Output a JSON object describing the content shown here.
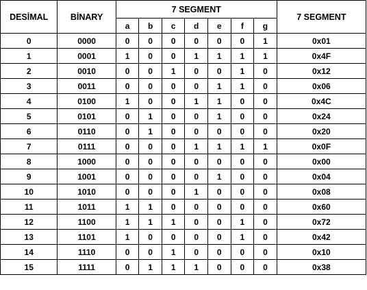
{
  "headers": {
    "decimal": "DESİMAL",
    "binary": "BİNARY",
    "segment_group": "7 SEGMENT",
    "segment_hex": "7 SEGMENT",
    "segments": [
      "a",
      "b",
      "c",
      "d",
      "e",
      "f",
      "g"
    ]
  },
  "rows": [
    {
      "dec": "0",
      "bin": "0000",
      "seg": [
        "0",
        "0",
        "0",
        "0",
        "0",
        "0",
        "1"
      ],
      "hex": "0x01"
    },
    {
      "dec": "1",
      "bin": "0001",
      "seg": [
        "1",
        "0",
        "0",
        "1",
        "1",
        "1",
        "1"
      ],
      "hex": "0x4F"
    },
    {
      "dec": "2",
      "bin": "0010",
      "seg": [
        "0",
        "0",
        "1",
        "0",
        "0",
        "1",
        "0"
      ],
      "hex": "0x12"
    },
    {
      "dec": "3",
      "bin": "0011",
      "seg": [
        "0",
        "0",
        "0",
        "0",
        "1",
        "1",
        "0"
      ],
      "hex": "0x06"
    },
    {
      "dec": "4",
      "bin": "0100",
      "seg": [
        "1",
        "0",
        "0",
        "1",
        "1",
        "0",
        "0"
      ],
      "hex": "0x4C"
    },
    {
      "dec": "5",
      "bin": "0101",
      "seg": [
        "0",
        "1",
        "0",
        "0",
        "1",
        "0",
        "0"
      ],
      "hex": "0x24"
    },
    {
      "dec": "6",
      "bin": "0110",
      "seg": [
        "0",
        "1",
        "0",
        "0",
        "0",
        "0",
        "0"
      ],
      "hex": "0x20"
    },
    {
      "dec": "7",
      "bin": "0111",
      "seg": [
        "0",
        "0",
        "0",
        "1",
        "1",
        "1",
        "1"
      ],
      "hex": "0x0F"
    },
    {
      "dec": "8",
      "bin": "1000",
      "seg": [
        "0",
        "0",
        "0",
        "0",
        "0",
        "0",
        "0"
      ],
      "hex": "0x00"
    },
    {
      "dec": "9",
      "bin": "1001",
      "seg": [
        "0",
        "0",
        "0",
        "0",
        "1",
        "0",
        "0"
      ],
      "hex": "0x04"
    },
    {
      "dec": "10",
      "bin": "1010",
      "seg": [
        "0",
        "0",
        "0",
        "1",
        "0",
        "0",
        "0"
      ],
      "hex": "0x08"
    },
    {
      "dec": "11",
      "bin": "1011",
      "seg": [
        "1",
        "1",
        "0",
        "0",
        "0",
        "0",
        "0"
      ],
      "hex": "0x60"
    },
    {
      "dec": "12",
      "bin": "1100",
      "seg": [
        "1",
        "1",
        "1",
        "0",
        "0",
        "1",
        "0"
      ],
      "hex": "0x72"
    },
    {
      "dec": "13",
      "bin": "1101",
      "seg": [
        "1",
        "0",
        "0",
        "0",
        "0",
        "1",
        "0"
      ],
      "hex": "0x42"
    },
    {
      "dec": "14",
      "bin": "1110",
      "seg": [
        "0",
        "0",
        "1",
        "0",
        "0",
        "0",
        "0"
      ],
      "hex": "0x10"
    },
    {
      "dec": "15",
      "bin": "1111",
      "seg": [
        "0",
        "1",
        "1",
        "1",
        "0",
        "0",
        "0"
      ],
      "hex": "0x38"
    }
  ]
}
